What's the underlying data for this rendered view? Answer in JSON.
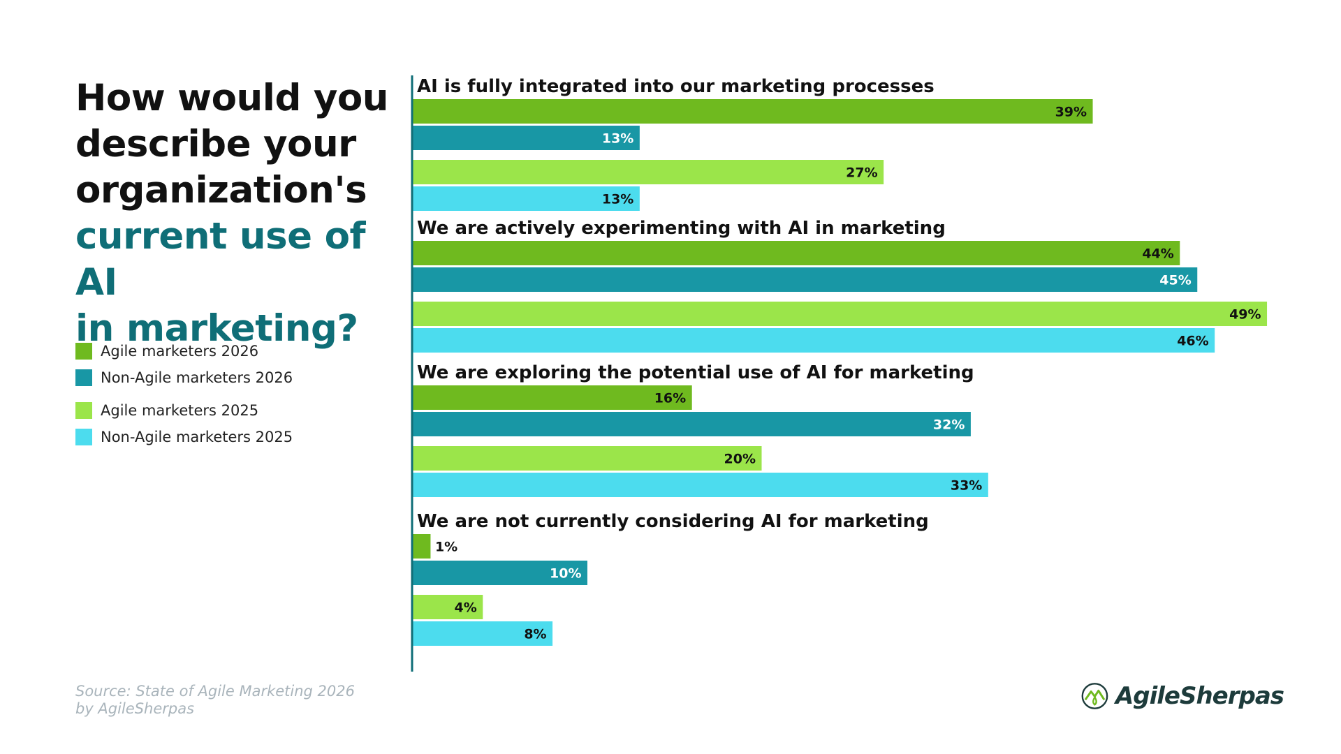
{
  "title": {
    "line1": "How would you",
    "line2": "describe your",
    "line3": "organization's",
    "line4": "current use of AI",
    "line5": "in marketing?"
  },
  "source": {
    "line1": "Source: State of Agile Marketing 2026",
    "line2": "by AgileSherpas"
  },
  "logo": {
    "text": "AgileSherpas"
  },
  "chart_data": {
    "type": "bar",
    "orientation": "horizontal",
    "title": "How would you describe your organization's current use of AI in marketing?",
    "value_unit": "%",
    "xlim": [
      0,
      100
    ],
    "categories": [
      "AI is fully integrated into our marketing processes",
      "We are actively experimenting with AI in marketing",
      "We are exploring the potential use of AI for marketing",
      "We are not currently considering AI for marketing"
    ],
    "series": [
      {
        "name": "Agile marketers 2026",
        "color": "#6fba1f",
        "label_color": "#111111",
        "values": [
          39,
          44,
          16,
          1
        ]
      },
      {
        "name": "Non-Agile marketers 2026",
        "color": "#1897a5",
        "label_color": "#ffffff",
        "values": [
          13,
          45,
          32,
          10
        ]
      },
      {
        "name": "Agile marketers 2025",
        "color": "#9be54a",
        "label_color": "#111111",
        "values": [
          27,
          49,
          20,
          4
        ]
      },
      {
        "name": "Non-Agile marketers 2025",
        "color": "#4cdcee",
        "label_color": "#111111",
        "values": [
          13,
          46,
          33,
          8
        ]
      }
    ],
    "legend": {
      "position": "left",
      "entries": [
        "Agile marketers 2026",
        "Non-Agile marketers 2026",
        "Agile marketers 2025",
        "Non-Agile marketers 2025"
      ]
    },
    "axis_line_color": "#0f6e77"
  }
}
